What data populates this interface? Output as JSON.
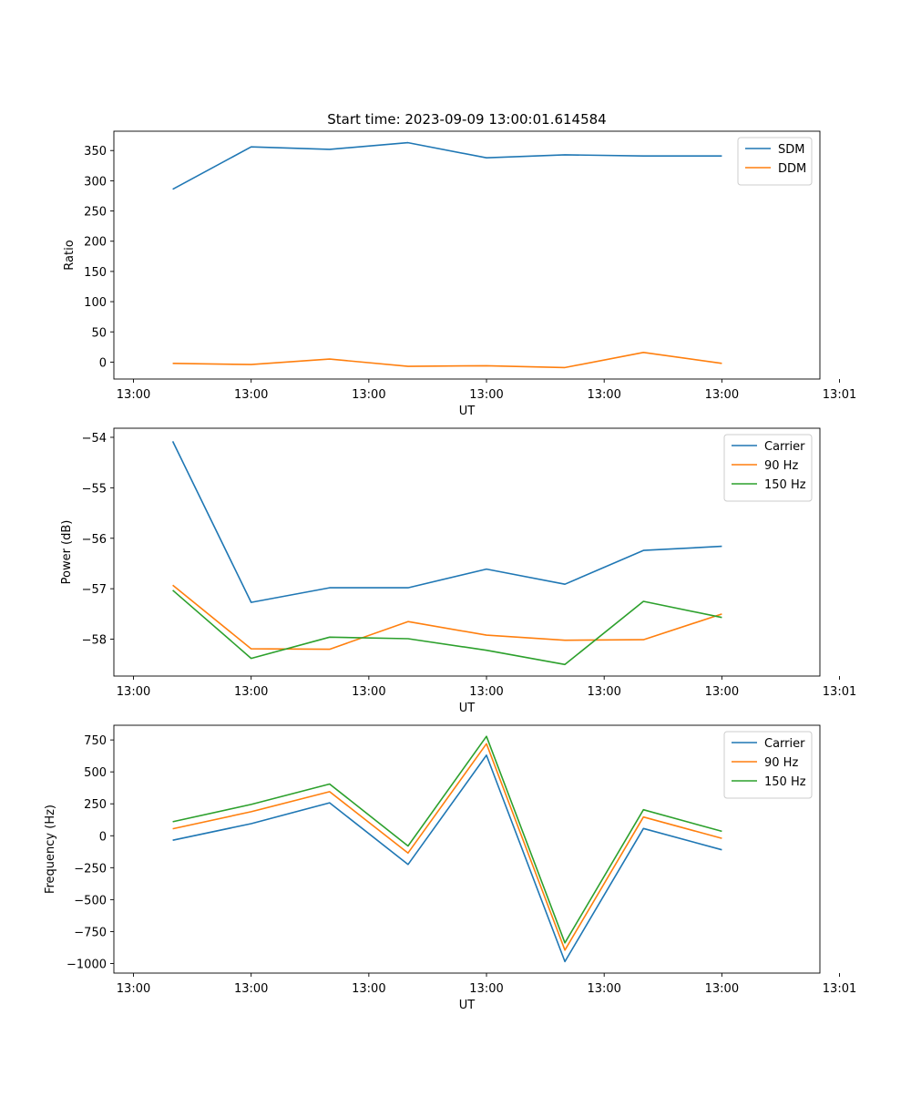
{
  "chart_data": [
    {
      "type": "line",
      "title": "Start time: 2023-09-09 13:00:01.614584",
      "xlabel": "UT",
      "ylabel": "Ratio",
      "x_tick_labels": [
        "13:00",
        "13:00",
        "13:00",
        "13:00",
        "13:00",
        "13:00",
        "13:01"
      ],
      "x_points": 8,
      "xlim": [
        -0.75,
        8.25
      ],
      "ylim": [
        -28,
        382
      ],
      "yticks": [
        0,
        50,
        100,
        150,
        200,
        250,
        300,
        350
      ],
      "ytick_labels": [
        "0",
        "50",
        "100",
        "150",
        "200",
        "250",
        "300",
        "350"
      ],
      "legend_position": "upper-right",
      "grid": false,
      "series": [
        {
          "name": "SDM",
          "color": "#1f77b4",
          "values": [
            286,
            356,
            352,
            363,
            338,
            343,
            341,
            341
          ]
        },
        {
          "name": "DDM",
          "color": "#ff7f0e",
          "values": [
            -2,
            -4,
            5,
            -7,
            -6,
            -9,
            16,
            -2
          ]
        }
      ]
    },
    {
      "type": "line",
      "title": "",
      "xlabel": "UT",
      "ylabel": "Power (dB)",
      "x_tick_labels": [
        "13:00",
        "13:00",
        "13:00",
        "13:00",
        "13:00",
        "13:00",
        "13:01"
      ],
      "x_points": 8,
      "xlim": [
        -0.75,
        8.25
      ],
      "ylim": [
        -58.73,
        -53.82
      ],
      "yticks": [
        -58,
        -57,
        -56,
        -55,
        -54
      ],
      "ytick_labels": [
        "−58",
        "−57",
        "−56",
        "−55",
        "−54"
      ],
      "legend_position": "upper-right",
      "grid": false,
      "series": [
        {
          "name": "Carrier",
          "color": "#1f77b4",
          "values": [
            -54.08,
            -57.27,
            -56.98,
            -56.98,
            -56.61,
            -56.91,
            -56.24,
            -56.16
          ]
        },
        {
          "name": "90 Hz",
          "color": "#ff7f0e",
          "values": [
            -56.93,
            -58.19,
            -58.2,
            -57.65,
            -57.92,
            -58.02,
            -58.01,
            -57.5
          ]
        },
        {
          "name": "150 Hz",
          "color": "#2ca02c",
          "values": [
            -57.03,
            -58.38,
            -57.96,
            -57.99,
            -58.22,
            -58.5,
            -57.25,
            -57.57
          ]
        }
      ]
    },
    {
      "type": "line",
      "title": "",
      "xlabel": "UT",
      "ylabel": "Frequency (Hz)",
      "x_tick_labels": [
        "13:00",
        "13:00",
        "13:00",
        "13:00",
        "13:00",
        "13:00",
        "13:01"
      ],
      "x_points": 8,
      "xlim": [
        -0.75,
        8.25
      ],
      "ylim": [
        -1075,
        865
      ],
      "yticks": [
        -1000,
        -750,
        -500,
        -250,
        0,
        250,
        500,
        750
      ],
      "ytick_labels": [
        "−1000",
        "−750",
        "−500",
        "−250",
        "0",
        "250",
        "500",
        "750"
      ],
      "legend_position": "upper-right",
      "grid": false,
      "series": [
        {
          "name": "Carrier",
          "color": "#1f77b4",
          "values": [
            -35,
            95,
            258,
            -225,
            630,
            -985,
            57,
            -110
          ]
        },
        {
          "name": "90 Hz",
          "color": "#ff7f0e",
          "values": [
            55,
            188,
            345,
            -135,
            720,
            -895,
            147,
            -20
          ]
        },
        {
          "name": "150 Hz",
          "color": "#2ca02c",
          "values": [
            110,
            245,
            405,
            -80,
            778,
            -838,
            204,
            35
          ]
        }
      ]
    }
  ]
}
